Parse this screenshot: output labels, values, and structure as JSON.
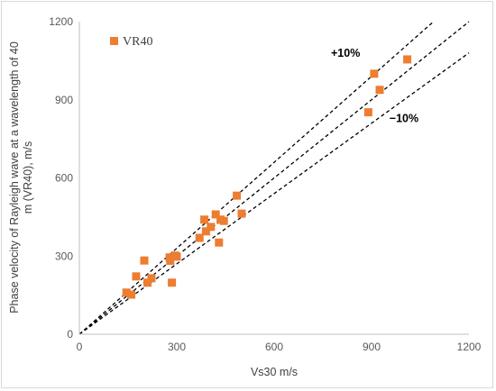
{
  "chart_data": {
    "type": "scatter",
    "xlabel": "Vs30 m/s",
    "ylabel_lines": [
      "Phase velocity of Rayleigh wave at a wavelength of 40",
      "m  (VR40), m/s"
    ],
    "xlim": [
      0,
      1200
    ],
    "ylim": [
      0,
      1200
    ],
    "xticks": [
      "0",
      "300",
      "600",
      "900",
      "1200"
    ],
    "yticks": [
      "0",
      "300",
      "600",
      "900",
      "1200"
    ],
    "grid": false,
    "legend_position": "top-left",
    "series": [
      {
        "name": "VR40",
        "color": "#ED7D31",
        "marker": "square",
        "points": [
          [
            145,
            160
          ],
          [
            160,
            152
          ],
          [
            175,
            222
          ],
          [
            200,
            283
          ],
          [
            210,
            198
          ],
          [
            222,
            215
          ],
          [
            278,
            295
          ],
          [
            280,
            282
          ],
          [
            285,
            198
          ],
          [
            295,
            302
          ],
          [
            300,
            298
          ],
          [
            370,
            370
          ],
          [
            385,
            440
          ],
          [
            390,
            395
          ],
          [
            405,
            412
          ],
          [
            420,
            460
          ],
          [
            430,
            352
          ],
          [
            435,
            440
          ],
          [
            445,
            435
          ],
          [
            485,
            532
          ],
          [
            500,
            463
          ],
          [
            890,
            852
          ],
          [
            908,
            1000
          ],
          [
            925,
            938
          ],
          [
            1010,
            1055
          ]
        ]
      }
    ],
    "reference_lines": [
      {
        "label": "+10%",
        "slope": 1.1,
        "dash": true
      },
      {
        "label": "",
        "slope": 1.0,
        "dash": true
      },
      {
        "label": "−10%",
        "slope": 0.9,
        "dash": true
      }
    ],
    "annotations": [
      {
        "text": "+10%",
        "x": 775,
        "y": 1065
      },
      {
        "text": "−10%",
        "x": 955,
        "y": 815
      }
    ]
  }
}
